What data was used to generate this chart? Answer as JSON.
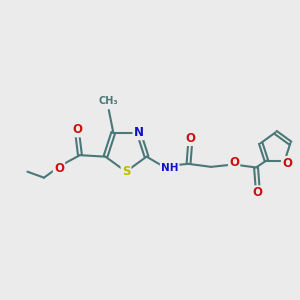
{
  "background_color": "#ebebeb",
  "bond_color": "#4a7878",
  "bond_lw": 1.5,
  "atom_colors": {
    "N": "#1010cc",
    "S": "#bbbb00",
    "O": "#cc1010",
    "default": "#4a7878"
  },
  "fs": 8.5,
  "fs_small": 7.0
}
